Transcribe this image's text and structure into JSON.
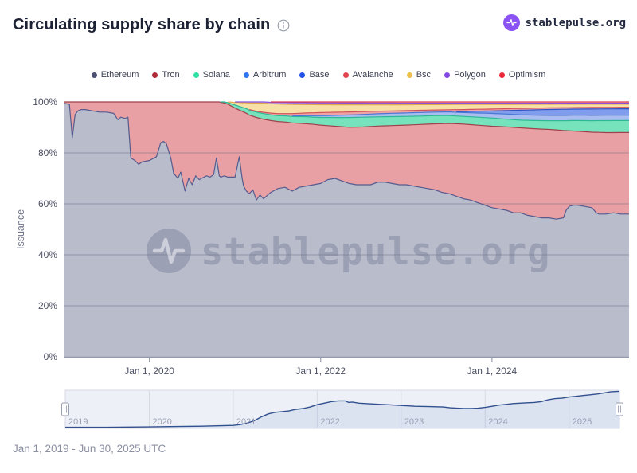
{
  "header": {
    "title": "Circulating supply share by chain",
    "brand": "stablepulse.org"
  },
  "watermark": {
    "text": "stablepulse.org"
  },
  "footer": {
    "range_label": "Jan 1, 2019 - Jun 30, 2025 UTC"
  },
  "chart_data": {
    "type": "area",
    "stacking": "percent",
    "title": "Circulating supply share by chain",
    "xlabel": "",
    "ylabel": "Issuance",
    "ylim": [
      0,
      100
    ],
    "xlim_months": [
      0,
      79.2
    ],
    "x_epoch": "months since Jan 1, 2019",
    "grid": true,
    "legend_position": "top",
    "yticks": [
      {
        "v": 0,
        "label": "0%"
      },
      {
        "v": 20,
        "label": "20%"
      },
      {
        "v": 40,
        "label": "40%"
      },
      {
        "v": 60,
        "label": "60%"
      },
      {
        "v": 80,
        "label": "80%"
      },
      {
        "v": 100,
        "label": "100%"
      }
    ],
    "xticks": [
      {
        "month": 12,
        "label": "Jan 1, 2020"
      },
      {
        "month": 36,
        "label": "Jan 1, 2022"
      },
      {
        "month": 60,
        "label": "Jan 1, 2024"
      }
    ],
    "samples_months": [
      0,
      0.8,
      1.2,
      1.6,
      2,
      2.5,
      3,
      4,
      5,
      6,
      7,
      7.6,
      8,
      8.6,
      9,
      9.4,
      10,
      10.5,
      11,
      12,
      13,
      13.6,
      14,
      14.4,
      15,
      15.4,
      16,
      16.4,
      17,
      17.5,
      18,
      18.5,
      19,
      20,
      20.5,
      21,
      21.4,
      21.8,
      22,
      22.5,
      23,
      24,
      24.6,
      25,
      25.2,
      25.6,
      26,
      26.5,
      27,
      27.5,
      28,
      29,
      30,
      31,
      32,
      33,
      34,
      35,
      36,
      37,
      38,
      39,
      40,
      41,
      42,
      43,
      44,
      45,
      46,
      47,
      48,
      49,
      50,
      51,
      52,
      53,
      54,
      55,
      56,
      57,
      58,
      59,
      60,
      61,
      62,
      63,
      64,
      65,
      66,
      67,
      68,
      69,
      70,
      70.4,
      70.8,
      71.4,
      72,
      73,
      74,
      74.6,
      75,
      76,
      77,
      78,
      79.2
    ],
    "series": [
      {
        "name": "Ethereum",
        "legend_color": "#4c5170",
        "fill": "#b9bccb",
        "stroke": "#565b8e",
        "values": [
          99.5,
          99,
          86,
          95,
          96.5,
          97,
          97,
          96.5,
          96,
          96,
          95.5,
          93,
          94,
          93.5,
          94,
          78,
          77,
          75.5,
          76.5,
          77,
          78.5,
          84,
          84.5,
          83.5,
          78,
          72,
          70,
          72.5,
          65,
          70,
          67.5,
          71,
          69.5,
          71,
          70.5,
          71.5,
          78,
          71,
          70.5,
          71,
          70.5,
          70.5,
          78.5,
          70,
          67,
          65,
          64,
          65.5,
          61.5,
          63.5,
          62,
          64.5,
          66,
          66.5,
          65,
          66.5,
          67,
          67.5,
          68,
          69.5,
          70,
          69,
          68,
          67.5,
          67.5,
          67.5,
          68.5,
          68.5,
          68,
          67.5,
          67.5,
          67,
          66.5,
          66,
          65.5,
          64.5,
          64,
          63,
          62,
          61.5,
          60.5,
          59.5,
          58.5,
          58,
          57.5,
          56.5,
          56.5,
          55.5,
          55,
          54.5,
          54.5,
          54,
          54.5,
          57.5,
          59,
          59.5,
          59.5,
          59,
          58.5,
          56.5,
          56,
          56,
          56.5,
          56,
          56
        ]
      },
      {
        "name": "Tron",
        "legend_color": "#b02a37",
        "fill": "#e8a0a4",
        "stroke": "#9e424b",
        "values_mode": "remainder"
      },
      {
        "name": "Solana",
        "legend_color": "#2fdfa4",
        "fill": "#76e3bd",
        "stroke": "#2eb896",
        "keyframes": [
          [
            22,
            0.2
          ],
          [
            23,
            0.6
          ],
          [
            24,
            1.2
          ],
          [
            26,
            2
          ],
          [
            28,
            2.2
          ],
          [
            30,
            2.3
          ],
          [
            33,
            2.6
          ],
          [
            36,
            3
          ],
          [
            38,
            3.4
          ],
          [
            40,
            3.8
          ],
          [
            42,
            3.8
          ],
          [
            44,
            3.6
          ],
          [
            48,
            3.4
          ],
          [
            52,
            3.2
          ],
          [
            56,
            3
          ],
          [
            60,
            3.2
          ],
          [
            62,
            3
          ],
          [
            64,
            3
          ],
          [
            66,
            3.2
          ],
          [
            68,
            3.4
          ],
          [
            70,
            3.8
          ],
          [
            72,
            4.2
          ],
          [
            74,
            4.5
          ],
          [
            76,
            4.7
          ],
          [
            78,
            4.7
          ]
        ]
      },
      {
        "name": "Arbitrum",
        "legend_color": "#3274f0",
        "fill": "#aabdf0",
        "stroke": "#4a77d4",
        "keyframes": [
          [
            32,
            0.2
          ],
          [
            34,
            0.4
          ],
          [
            36,
            0.7
          ],
          [
            40,
            1
          ],
          [
            44,
            1.2
          ],
          [
            48,
            1.4
          ],
          [
            52,
            1.4
          ],
          [
            56,
            1.5
          ],
          [
            60,
            1.8
          ],
          [
            62,
            2
          ],
          [
            64,
            2.1
          ],
          [
            68,
            2.1
          ],
          [
            72,
            2.1
          ],
          [
            78,
            2.1
          ]
        ]
      },
      {
        "name": "Base",
        "legend_color": "#2450e8",
        "fill": "#7f9ced",
        "stroke": "#2f55c4",
        "keyframes": [
          [
            55,
            0.2
          ],
          [
            56,
            0.4
          ],
          [
            58,
            0.7
          ],
          [
            60,
            1
          ],
          [
            62,
            1.4
          ],
          [
            64,
            1.8
          ],
          [
            66,
            2.1
          ],
          [
            68,
            2.3
          ],
          [
            70,
            2.4
          ],
          [
            72,
            2.4
          ],
          [
            74,
            2.5
          ],
          [
            78,
            2.5
          ]
        ]
      },
      {
        "name": "Avalanche",
        "legend_color": "#e2434e",
        "fill": "#f0a3a3",
        "stroke": "#d2525c",
        "keyframes": [
          [
            26,
            0.2
          ],
          [
            28,
            0.5
          ],
          [
            30,
            0.8
          ],
          [
            33,
            1
          ],
          [
            36,
            1.2
          ],
          [
            40,
            1.2
          ],
          [
            44,
            1
          ],
          [
            48,
            0.9
          ],
          [
            56,
            0.8
          ],
          [
            64,
            0.7
          ],
          [
            72,
            0.6
          ],
          [
            78,
            0.6
          ]
        ]
      },
      {
        "name": "Bsc",
        "legend_color": "#eebf4d",
        "fill": "#f7e0a6",
        "stroke": "#e2a84e",
        "keyframes": [
          [
            23,
            0.3
          ],
          [
            24,
            1
          ],
          [
            25,
            1.8
          ],
          [
            26,
            2.6
          ],
          [
            27,
            3.2
          ],
          [
            28,
            3.6
          ],
          [
            30,
            3.8
          ],
          [
            32,
            3.6
          ],
          [
            34,
            3.3
          ],
          [
            36,
            3.1
          ],
          [
            40,
            2.8
          ],
          [
            44,
            2.5
          ],
          [
            48,
            2.3
          ],
          [
            52,
            2.1
          ],
          [
            56,
            2
          ],
          [
            60,
            1.8
          ],
          [
            64,
            1.6
          ],
          [
            68,
            1.4
          ],
          [
            72,
            1.3
          ],
          [
            78,
            1.2
          ]
        ]
      },
      {
        "name": "Polygon",
        "legend_color": "#8247e5",
        "fill": "#c7a6ea",
        "stroke": "#8d52d8",
        "keyframes": [
          [
            24,
            0.2
          ],
          [
            26,
            0.4
          ],
          [
            28,
            0.5
          ],
          [
            32,
            0.7
          ],
          [
            36,
            0.7
          ],
          [
            44,
            0.7
          ],
          [
            48,
            0.6
          ],
          [
            56,
            0.5
          ],
          [
            64,
            0.45
          ],
          [
            72,
            0.4
          ],
          [
            78,
            0.4
          ]
        ]
      },
      {
        "name": "Optimism",
        "legend_color": "#ed2939",
        "fill": "#f3aab6",
        "stroke": "#d93a52",
        "keyframes": [
          [
            29,
            0.15
          ],
          [
            32,
            0.3
          ],
          [
            36,
            0.4
          ],
          [
            42,
            0.45
          ],
          [
            48,
            0.5
          ],
          [
            56,
            0.5
          ],
          [
            64,
            0.5
          ],
          [
            72,
            0.5
          ],
          [
            78,
            0.5
          ]
        ]
      }
    ],
    "navigator": {
      "years": [
        "2019",
        "2020",
        "2021",
        "2022",
        "2023",
        "2024",
        "2025"
      ],
      "points": [
        [
          0,
          0.03
        ],
        [
          6,
          0.03
        ],
        [
          12,
          0.04
        ],
        [
          16,
          0.05
        ],
        [
          20,
          0.06
        ],
        [
          24,
          0.08
        ],
        [
          25,
          0.1
        ],
        [
          26,
          0.14
        ],
        [
          27,
          0.2
        ],
        [
          28,
          0.3
        ],
        [
          29,
          0.38
        ],
        [
          30,
          0.42
        ],
        [
          31,
          0.44
        ],
        [
          32,
          0.46
        ],
        [
          33,
          0.5
        ],
        [
          34,
          0.52
        ],
        [
          35,
          0.56
        ],
        [
          36,
          0.62
        ],
        [
          37,
          0.66
        ],
        [
          38,
          0.7
        ],
        [
          39,
          0.72
        ],
        [
          40,
          0.72
        ],
        [
          40.5,
          0.68
        ],
        [
          41,
          0.69
        ],
        [
          42,
          0.66
        ],
        [
          43,
          0.65
        ],
        [
          44,
          0.64
        ],
        [
          45,
          0.63
        ],
        [
          46,
          0.62
        ],
        [
          47,
          0.61
        ],
        [
          48,
          0.6
        ],
        [
          50,
          0.58
        ],
        [
          52,
          0.57
        ],
        [
          54,
          0.56
        ],
        [
          55,
          0.54
        ],
        [
          56,
          0.53
        ],
        [
          57,
          0.52
        ],
        [
          58,
          0.52
        ],
        [
          59,
          0.53
        ],
        [
          60,
          0.55
        ],
        [
          61,
          0.58
        ],
        [
          62,
          0.61
        ],
        [
          63,
          0.63
        ],
        [
          64,
          0.65
        ],
        [
          65,
          0.66
        ],
        [
          66,
          0.67
        ],
        [
          67,
          0.68
        ],
        [
          68,
          0.7
        ],
        [
          69,
          0.75
        ],
        [
          70,
          0.78
        ],
        [
          71,
          0.79
        ],
        [
          72,
          0.82
        ],
        [
          73,
          0.84
        ],
        [
          74,
          0.86
        ],
        [
          75,
          0.88
        ],
        [
          76,
          0.9
        ],
        [
          77,
          0.93
        ],
        [
          78,
          0.96
        ],
        [
          79.2,
          0.97
        ]
      ]
    }
  }
}
